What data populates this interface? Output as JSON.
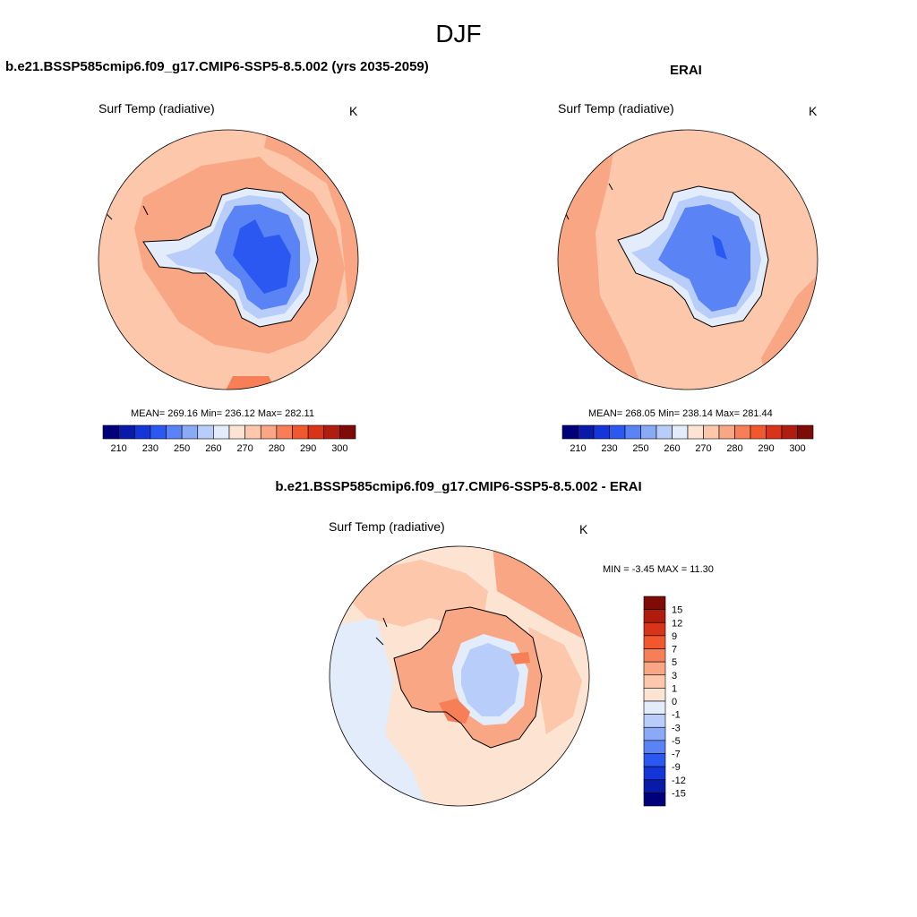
{
  "figure": {
    "title": "DJF"
  },
  "panels": [
    {
      "title": "b.e21.BSSP585cmip6.f09_g17.CMIP6-SSP5-8.5.002 (yrs 2035-2059)",
      "variable": "Surf Temp (radiative)",
      "units": "K",
      "stats_text": "MEAN= 269.16  Min= 236.12  Max= 282.11",
      "stats": {
        "mean": 269.16,
        "min": 236.12,
        "max": 282.11
      }
    },
    {
      "title": "ERAI",
      "variable": "Surf Temp (radiative)",
      "units": "K",
      "stats_text": "MEAN= 268.05  Min= 238.14  Max= 281.44",
      "stats": {
        "mean": 268.05,
        "min": 238.14,
        "max": 281.44
      }
    },
    {
      "title": "b.e21.BSSP585cmip6.f09_g17.CMIP6-SSP5-8.5.002 - ERAI",
      "variable": "Surf Temp (radiative)",
      "units": "K",
      "stats_text": "MIN =  -3.45 MAX =  11.30",
      "stats": {
        "min": -3.45,
        "max": 11.3
      }
    }
  ],
  "colorbars": {
    "absolute": {
      "colors": [
        "#00007a",
        "#0a1aa8",
        "#1436d8",
        "#2a58f0",
        "#5a84f5",
        "#8aaaf7",
        "#b9cdfa",
        "#e2ecfb",
        "#fde3d2",
        "#fcc7ab",
        "#f9a684",
        "#f77f57",
        "#f2582e",
        "#d8341a",
        "#b01d0e",
        "#7e0b05"
      ],
      "labels": [
        "210",
        "230",
        "250",
        "260",
        "270",
        "280",
        "290",
        "300"
      ]
    },
    "difference": {
      "colors": [
        "#7e0b05",
        "#b01d0e",
        "#d8341a",
        "#f2582e",
        "#f77f57",
        "#f9a684",
        "#fcc7ab",
        "#fde3d2",
        "#e2ecfb",
        "#b9cdfa",
        "#8aaaf7",
        "#5a84f5",
        "#2a58f0",
        "#1436d8",
        "#0a1aa8",
        "#00007a"
      ],
      "labels": [
        "15",
        "12",
        "9",
        "7",
        "5",
        "3",
        "1",
        "0",
        "-1",
        "-3",
        "-5",
        "-7",
        "-9",
        "-12",
        "-15"
      ]
    }
  }
}
